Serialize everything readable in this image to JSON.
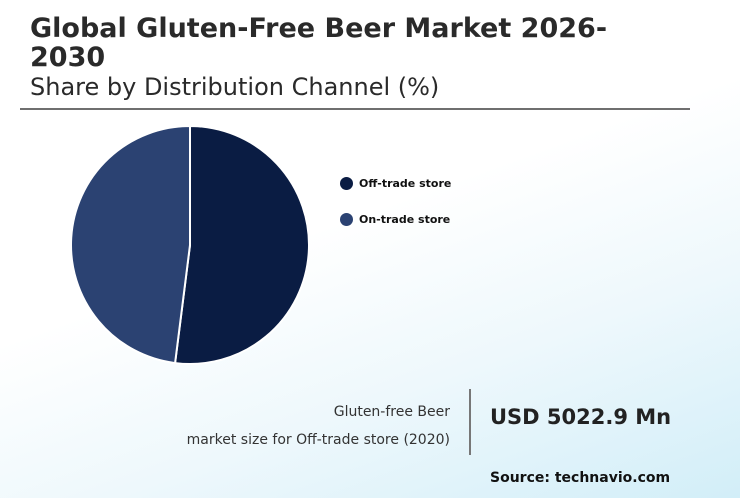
{
  "header": {
    "title": "Global Gluten-Free Beer Market 2026-2030",
    "subtitle": "Share by Distribution Channel (%)"
  },
  "chart_data": {
    "type": "pie",
    "categories": [
      "Off-trade store",
      "On-trade store"
    ],
    "values": [
      52,
      48
    ],
    "colors": [
      "#0a1c43",
      "#2b4272"
    ],
    "legend_position": "right"
  },
  "footer": {
    "note_line1": "Gluten-free Beer",
    "note_line2": "market size for Off-trade store (2020)",
    "value": "USD 5022.9 Mn",
    "source": "Source: technavio.com"
  }
}
